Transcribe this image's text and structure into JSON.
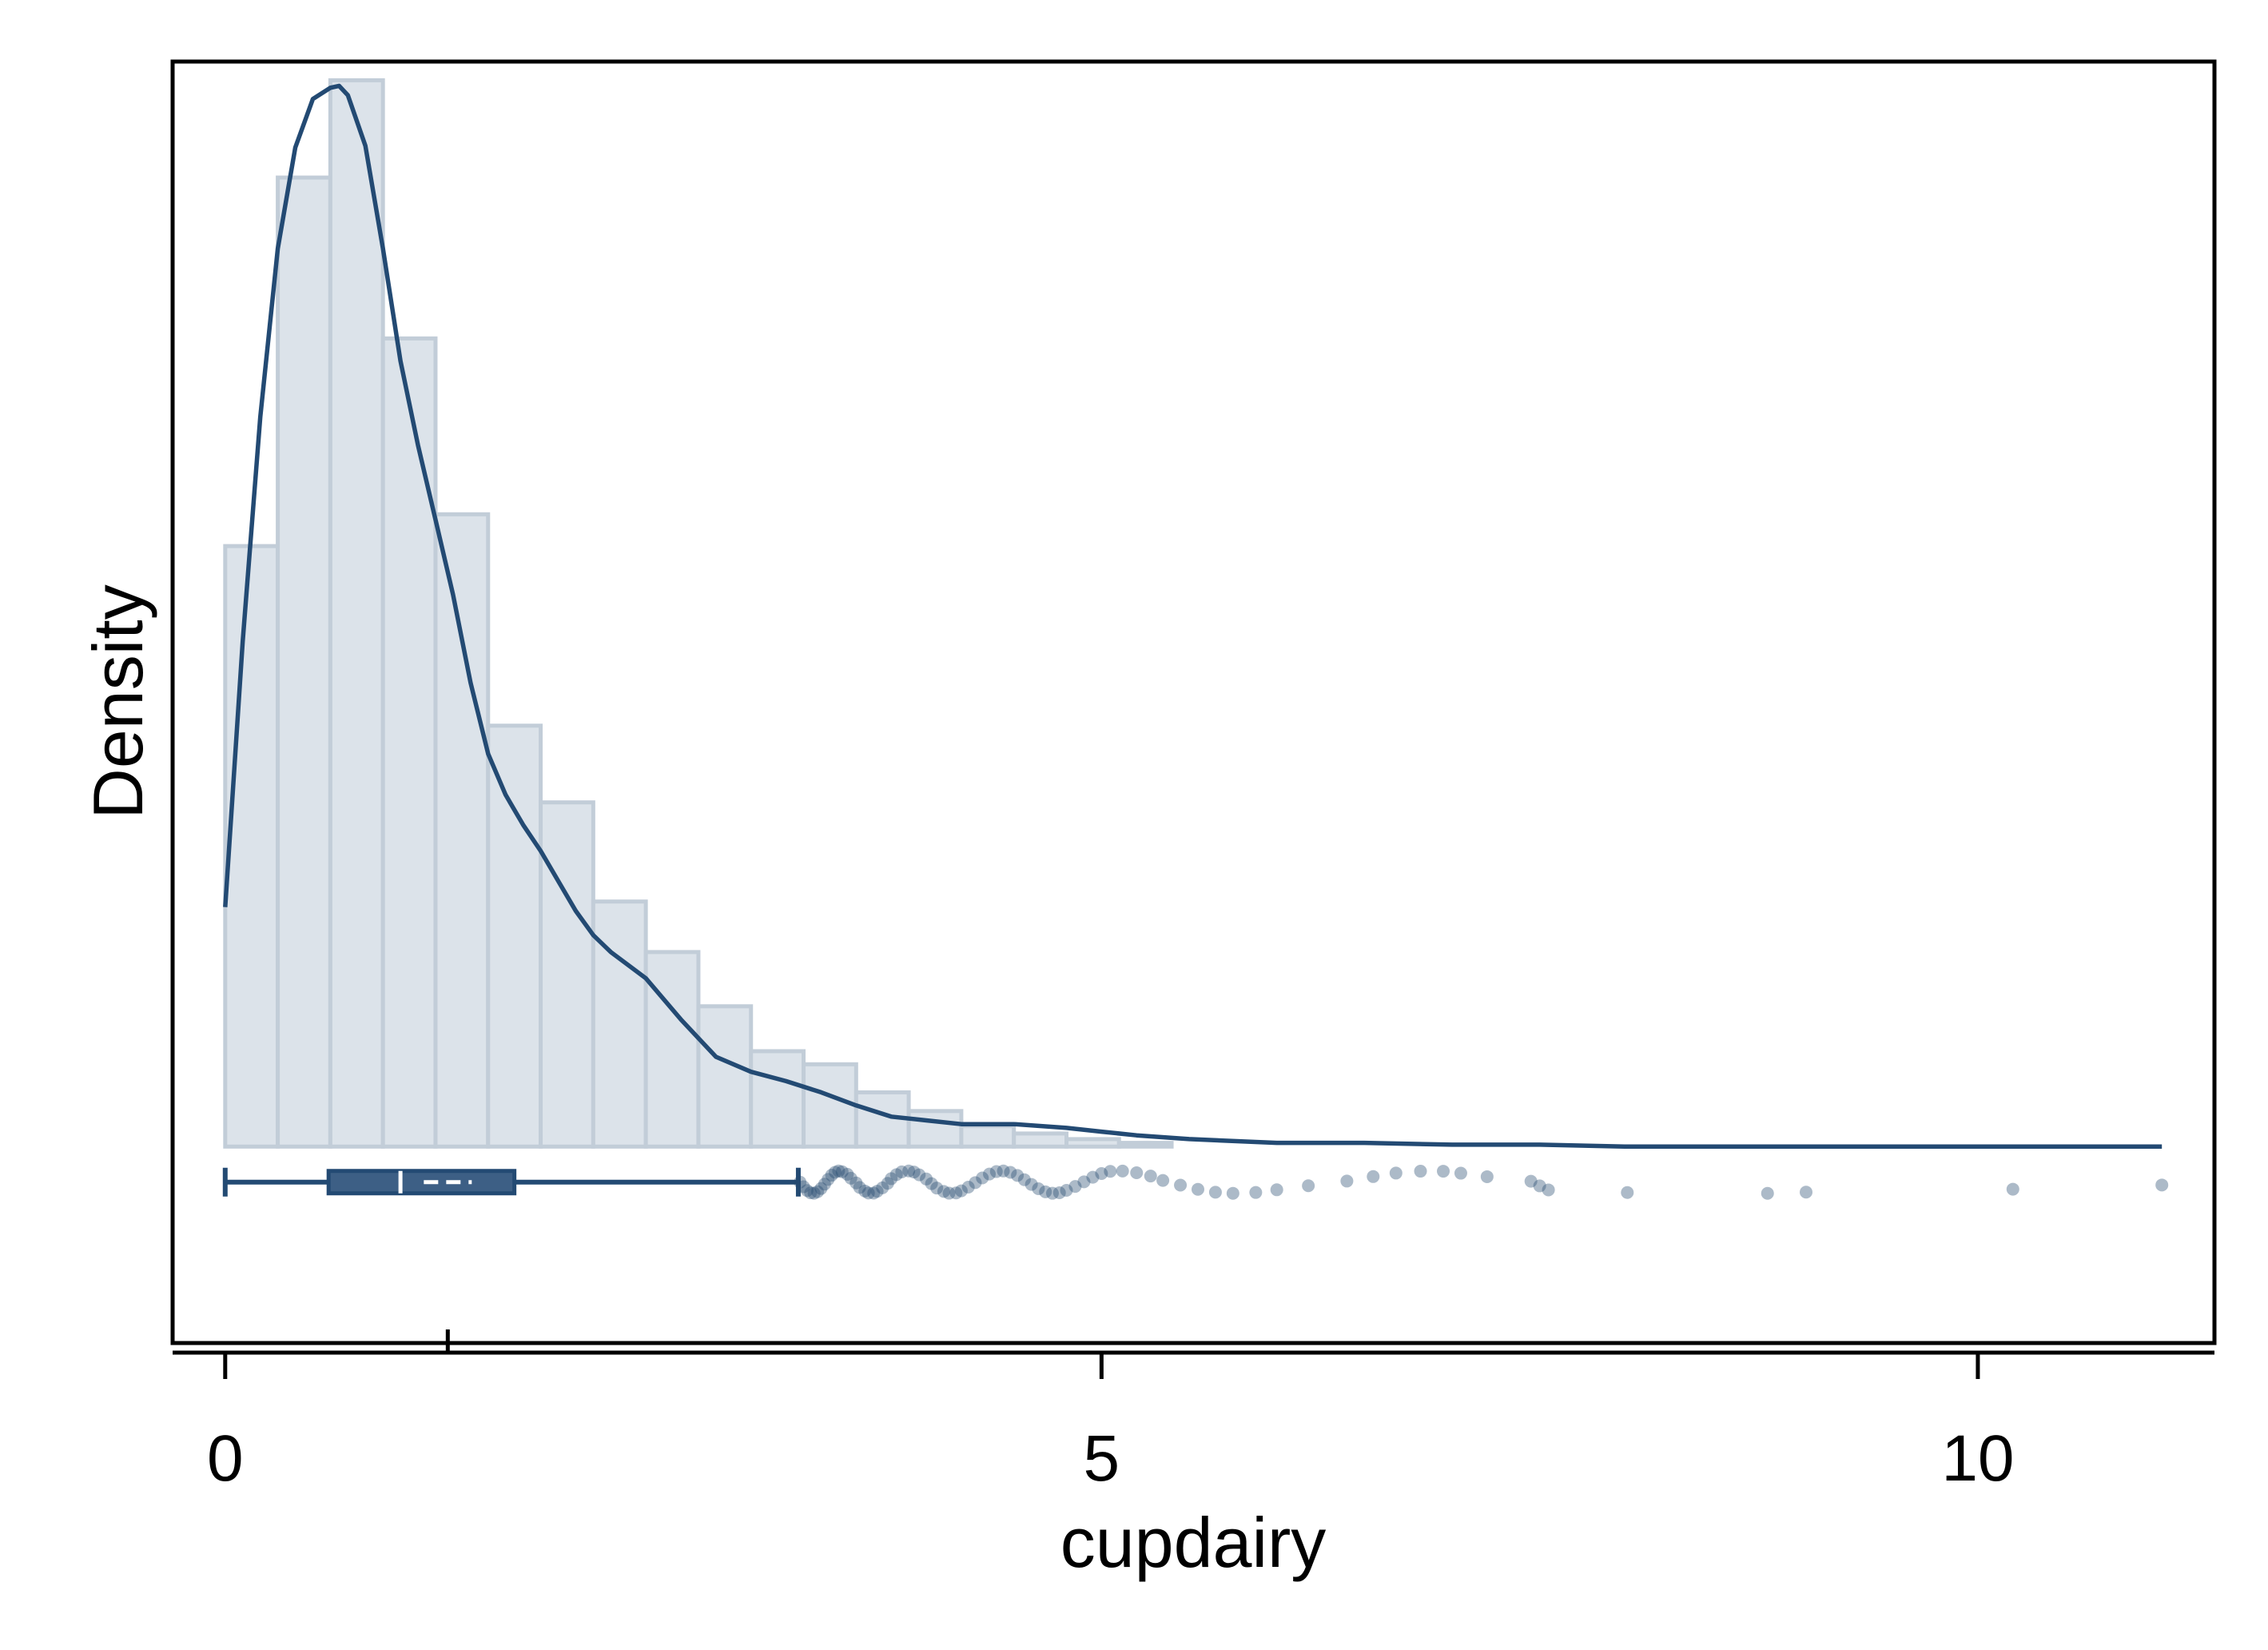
{
  "chart_data": {
    "type": "histogram",
    "xlabel": "cupdairy",
    "ylabel": "Density",
    "xlim": [
      -0.3,
      11.35
    ],
    "ylim": [
      -0.105,
      0.58
    ],
    "x_ticks": [
      0,
      5,
      10
    ],
    "x_tick_labels": [
      "0",
      "5",
      "10"
    ],
    "grid": false,
    "legend": "none",
    "colors": {
      "bar_fill": "#dce3ea",
      "bar_stroke": "#c2cdd8",
      "line": "#234a73",
      "box_fill": "#3d5f85",
      "points": "#26496f"
    },
    "histogram": {
      "bin_edges": [
        0.0,
        0.3,
        0.6,
        0.9,
        1.2,
        1.5,
        1.8,
        2.1,
        2.4,
        2.7,
        3.0,
        3.3,
        3.6,
        3.9,
        4.2,
        4.5,
        4.8,
        5.1,
        5.4
      ],
      "densities": [
        0.321,
        0.518,
        0.57,
        0.432,
        0.338,
        0.225,
        0.184,
        0.131,
        0.104,
        0.075,
        0.051,
        0.044,
        0.029,
        0.019,
        0.011,
        0.007,
        0.004,
        0.002
      ]
    },
    "kde": {
      "x": [
        0.0,
        0.1,
        0.2,
        0.3,
        0.4,
        0.5,
        0.6,
        0.65,
        0.7,
        0.8,
        0.9,
        1.0,
        1.1,
        1.2,
        1.3,
        1.4,
        1.5,
        1.6,
        1.7,
        1.8,
        1.9,
        2.0,
        2.1,
        2.2,
        2.4,
        2.6,
        2.8,
        3.0,
        3.2,
        3.4,
        3.6,
        3.8,
        4.0,
        4.2,
        4.5,
        4.8,
        5.0,
        5.2,
        5.5,
        6.0,
        6.5,
        7.0,
        7.5,
        8.0,
        8.5,
        9.0,
        9.5,
        10.0,
        10.5,
        11.05
      ],
      "y": [
        0.128,
        0.27,
        0.39,
        0.48,
        0.534,
        0.56,
        0.566,
        0.567,
        0.562,
        0.535,
        0.48,
        0.42,
        0.375,
        0.335,
        0.295,
        0.248,
        0.21,
        0.188,
        0.172,
        0.158,
        0.142,
        0.126,
        0.113,
        0.104,
        0.09,
        0.068,
        0.048,
        0.04,
        0.035,
        0.029,
        0.022,
        0.016,
        0.014,
        0.012,
        0.012,
        0.01,
        0.008,
        0.006,
        0.004,
        0.002,
        0.002,
        0.001,
        0.001,
        0.0,
        0.0,
        0.0,
        0.0,
        0.0,
        0.0,
        0.0
      ]
    },
    "boxplot": {
      "y_level": -0.019,
      "whisker_low": 0.0,
      "q1": 0.59,
      "median": 1.0,
      "mean": 1.27,
      "q3": 1.65,
      "whisker_high": 3.27
    },
    "outliers": [
      3.28,
      3.3,
      3.32,
      3.34,
      3.36,
      3.38,
      3.4,
      3.42,
      3.44,
      3.46,
      3.48,
      3.5,
      3.52,
      3.55,
      3.57,
      3.6,
      3.62,
      3.65,
      3.67,
      3.7,
      3.72,
      3.75,
      3.78,
      3.8,
      3.83,
      3.86,
      3.9,
      3.93,
      3.96,
      4.0,
      4.03,
      4.06,
      4.1,
      4.13,
      4.17,
      4.2,
      4.24,
      4.28,
      4.32,
      4.36,
      4.4,
      4.44,
      4.48,
      4.52,
      4.56,
      4.6,
      4.64,
      4.68,
      4.72,
      4.76,
      4.8,
      4.85,
      4.9,
      4.95,
      5.0,
      5.05,
      5.12,
      5.2,
      5.28,
      5.35,
      5.45,
      5.55,
      5.65,
      5.75,
      5.88,
      6.0,
      6.18,
      6.4,
      6.55,
      6.68,
      6.82,
      6.95,
      7.05,
      7.2,
      7.45,
      7.5,
      7.55,
      8.0,
      8.8,
      9.02,
      10.2,
      11.05
    ]
  }
}
